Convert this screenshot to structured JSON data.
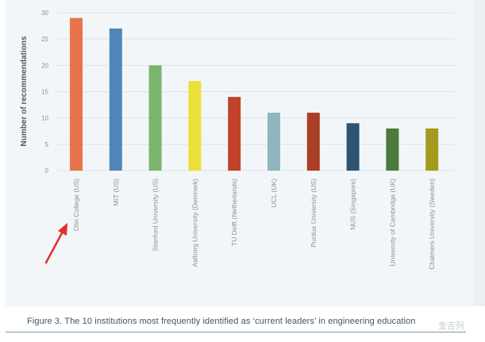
{
  "chart_data": {
    "type": "bar",
    "title": "",
    "xlabel": "",
    "ylabel": "Number of recommendations",
    "ylim": [
      0,
      30
    ],
    "yticks": [
      0,
      5,
      10,
      15,
      20,
      25,
      30
    ],
    "grid": true,
    "categories": [
      "Olin College (US)",
      "MIT (US)",
      "Stanford University (US)",
      "Aalborg University (Denmark)",
      "TU Delft (Netherlands)",
      "UCL (UK)",
      "Purdue University (US)",
      "NUS (Singapore)",
      "University of Cambridge (UK)",
      "Chalmers University (Sweden)"
    ],
    "values": [
      29,
      27,
      20,
      17,
      14,
      11,
      11,
      9,
      8,
      8
    ],
    "colors": [
      "#e8734a",
      "#4f87b8",
      "#7ab56e",
      "#ebe03a",
      "#c0422a",
      "#8fb6bd",
      "#a93f24",
      "#2e5473",
      "#4b7a3a",
      "#a39a1e"
    ]
  },
  "caption": "Figure 3. The 10 institutions most frequently identified as ‘current leaders’ in engineering education",
  "annotation": {
    "type": "red-arrow",
    "points_to": "Olin College (US)"
  },
  "watermark": "金吉列"
}
